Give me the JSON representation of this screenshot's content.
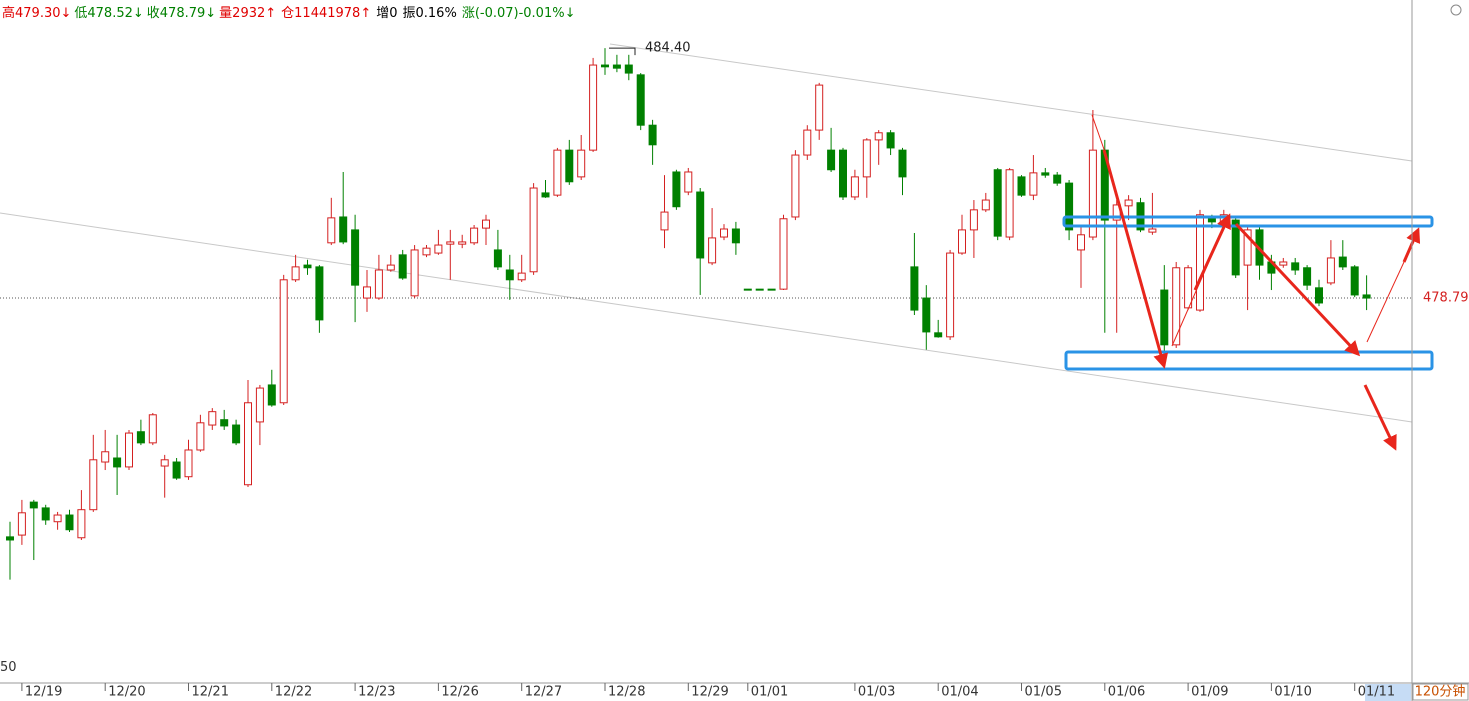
{
  "chart_data": {
    "type": "candlestick",
    "header": [
      {
        "text": "高479.30↓",
        "color": "#e00000"
      },
      {
        "text": "低478.52↓",
        "color": "#008000"
      },
      {
        "text": "收478.79↓",
        "color": "#008000"
      },
      {
        "text": "量2932↑",
        "color": "#e00000"
      },
      {
        "text": "仓11441978↑",
        "color": "#e00000"
      },
      {
        "text": "增0",
        "color": "#000000"
      },
      {
        "text": "振0.16%",
        "color": "#000000"
      },
      {
        "text": "涨(-0.07)-0.01%↓",
        "color": "#008000"
      }
    ],
    "period": "120分钟",
    "up_color": "#d42020",
    "down_color": "#008000",
    "categories": [
      null,
      "12/19",
      null,
      null,
      null,
      null,
      null,
      null,
      "12/20",
      null,
      null,
      null,
      null,
      null,
      null,
      "12/21",
      null,
      null,
      null,
      null,
      null,
      null,
      "12/22",
      null,
      null,
      null,
      null,
      null,
      null,
      "12/23",
      null,
      null,
      null,
      null,
      null,
      null,
      "12/26",
      null,
      null,
      null,
      null,
      null,
      null,
      "12/27",
      null,
      null,
      null,
      null,
      null,
      null,
      "12/28",
      null,
      null,
      null,
      null,
      null,
      null,
      "12/29",
      null,
      null,
      null,
      null,
      "01/01",
      null,
      null,
      null,
      null,
      null,
      null,
      null,
      null,
      "01/03",
      null,
      null,
      null,
      null,
      null,
      null,
      "01/04",
      null,
      null,
      null,
      null,
      null,
      null,
      "01/05",
      null,
      null,
      null,
      null,
      null,
      null,
      "01/06",
      null,
      null,
      null,
      null,
      null,
      null,
      "01/09",
      null,
      null,
      null,
      null,
      null,
      null,
      "01/10",
      null,
      null,
      null,
      null,
      null,
      null,
      "01/11",
      null
    ],
    "open": [
      473.43,
      473.47,
      474.21,
      474.08,
      473.77,
      473.92,
      473.41,
      474.04,
      475.11,
      475.2,
      475.0,
      475.79,
      475.54,
      475.02,
      475.11,
      474.78,
      475.38,
      475.94,
      476.06,
      475.94,
      474.6,
      476.01,
      476.84,
      476.44,
      479.2,
      479.53,
      479.49,
      480.03,
      480.61,
      480.32,
      478.79,
      478.79,
      479.42,
      479.76,
      478.84,
      479.76,
      479.8,
      480.0,
      480.0,
      480.03,
      480.36,
      479.87,
      479.42,
      479.2,
      479.38,
      481.15,
      481.1,
      482.11,
      481.51,
      482.11,
      484.02,
      484.02,
      484.02,
      483.8,
      482.67,
      480.32,
      481.62,
      481.17,
      481.17,
      479.58,
      480.16,
      480.34,
      478.99,
      478.99,
      478.99,
      478.99,
      480.61,
      482.0,
      482.56,
      482.11,
      482.11,
      481.06,
      481.51,
      482.34,
      482.5,
      482.11,
      479.49,
      478.79,
      478.01,
      477.92,
      479.8,
      480.32,
      480.77,
      481.67,
      480.16,
      481.51,
      481.1,
      481.6,
      481.55,
      481.37,
      479.87,
      480.16,
      482.11,
      480.54,
      480.86,
      480.93,
      480.27,
      478.97,
      477.74,
      478.57,
      478.52,
      480.59,
      480.5,
      480.54,
      479.53,
      480.32,
      479.6,
      479.53,
      479.58,
      479.47,
      479.02,
      479.13,
      479.71,
      479.49,
      478.86
    ],
    "high": [
      473.77,
      474.26,
      474.26,
      474.15,
      473.99,
      474.04,
      474.48,
      475.72,
      475.83,
      475.72,
      475.83,
      476.06,
      476.21,
      475.27,
      475.2,
      475.61,
      476.17,
      476.32,
      476.28,
      476.06,
      476.95,
      476.84,
      477.18,
      479.31,
      479.76,
      479.65,
      479.53,
      481.04,
      481.62,
      480.66,
      479.42,
      479.76,
      479.76,
      479.87,
      479.98,
      479.98,
      480.32,
      480.32,
      480.21,
      480.43,
      480.66,
      480.32,
      479.76,
      479.76,
      481.37,
      481.44,
      482.16,
      482.34,
      482.45,
      484.18,
      484.4,
      484.25,
      484.25,
      483.84,
      482.79,
      481.55,
      481.67,
      481.71,
      481.26,
      480.81,
      480.45,
      480.5,
      478.99,
      478.99,
      478.99,
      480.66,
      482.11,
      482.67,
      483.62,
      482.61,
      482.16,
      481.67,
      482.38,
      482.56,
      482.56,
      482.16,
      480.25,
      479.08,
      478.3,
      479.87,
      480.66,
      480.99,
      481.15,
      481.71,
      481.71,
      481.55,
      482.0,
      481.71,
      481.62,
      481.44,
      480.43,
      483.01,
      482.34,
      480.99,
      481.1,
      481.04,
      481.15,
      479.53,
      479.6,
      479.53,
      480.77,
      480.66,
      480.77,
      480.59,
      480.43,
      480.41,
      479.76,
      479.69,
      479.69,
      479.53,
      479.2,
      480.09,
      480.09,
      479.53,
      479.3
    ],
    "low": [
      472.47,
      473.25,
      472.91,
      473.7,
      473.59,
      473.54,
      473.36,
      473.99,
      474.93,
      474.37,
      474.93,
      475.49,
      475.49,
      474.31,
      474.71,
      474.71,
      475.34,
      475.83,
      475.83,
      475.49,
      474.55,
      475.49,
      476.35,
      476.39,
      479.15,
      479.31,
      478.01,
      479.98,
      480.0,
      478.25,
      478.48,
      478.75,
      479.38,
      479.2,
      478.79,
      479.71,
      479.76,
      479.2,
      479.91,
      479.98,
      479.98,
      479.42,
      478.75,
      479.15,
      479.31,
      481.04,
      481.06,
      481.33,
      481.44,
      482.07,
      483.8,
      483.86,
      483.68,
      482.56,
      481.78,
      479.91,
      480.77,
      481.1,
      478.86,
      479.53,
      480.09,
      479.76,
      478.99,
      478.99,
      478.99,
      478.97,
      480.54,
      481.89,
      482.34,
      481.62,
      480.99,
      480.99,
      481.04,
      481.78,
      482.0,
      481.1,
      478.41,
      477.63,
      477.9,
      477.85,
      479.76,
      479.69,
      480.72,
      480.09,
      480.09,
      481.06,
      480.99,
      481.49,
      481.31,
      480.09,
      479.02,
      480.09,
      478.01,
      478.01,
      480.54,
      480.27,
      480.21,
      477.51,
      477.67,
      478.52,
      478.48,
      480.36,
      480.43,
      479.24,
      478.52,
      479.2,
      478.97,
      479.47,
      479.31,
      478.97,
      478.61,
      479.08,
      479.42,
      478.81,
      478.52
    ],
    "close": [
      473.36,
      473.97,
      474.08,
      473.81,
      473.92,
      473.59,
      474.04,
      475.16,
      475.34,
      475.0,
      475.76,
      475.54,
      476.17,
      475.16,
      474.75,
      475.38,
      475.99,
      476.24,
      475.92,
      475.54,
      476.44,
      476.77,
      476.39,
      479.2,
      479.49,
      479.47,
      478.3,
      480.59,
      480.05,
      479.08,
      479.04,
      479.42,
      479.53,
      479.24,
      479.87,
      479.91,
      479.98,
      480.05,
      480.05,
      480.36,
      480.54,
      479.49,
      479.2,
      479.35,
      481.26,
      481.06,
      482.11,
      481.4,
      482.11,
      484.02,
      483.98,
      483.95,
      483.84,
      482.67,
      482.23,
      480.72,
      480.84,
      481.62,
      479.69,
      480.14,
      480.34,
      480.03,
      478.99,
      478.99,
      478.99,
      480.57,
      482.0,
      482.56,
      483.57,
      481.67,
      481.06,
      481.51,
      482.34,
      482.5,
      482.16,
      481.51,
      478.52,
      478.03,
      477.92,
      479.8,
      480.32,
      480.77,
      480.99,
      480.18,
      481.67,
      481.1,
      481.6,
      481.55,
      481.37,
      480.32,
      480.21,
      482.11,
      480.54,
      480.88,
      480.99,
      480.32,
      480.34,
      477.74,
      479.47,
      479.47,
      480.66,
      480.5,
      480.66,
      479.31,
      480.32,
      479.53,
      479.35,
      479.6,
      479.42,
      479.08,
      478.68,
      479.69,
      479.49,
      478.86,
      478.79
    ],
    "ylim": [
      470.15,
      485.48
    ],
    "yticks": [
      {
        "value": 470.5,
        "label": "50"
      }
    ],
    "last_price": 478.79,
    "max_label": {
      "value": 484.4,
      "label": "484.40"
    }
  }
}
